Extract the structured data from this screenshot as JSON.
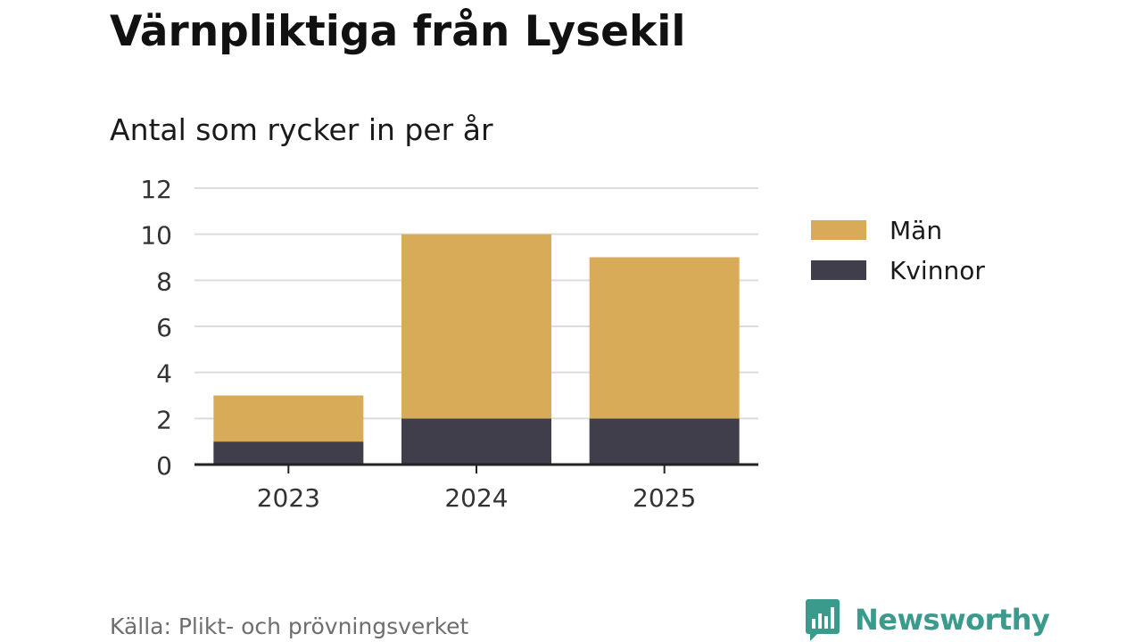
{
  "header": {
    "title": "Värnpliktiga från Lysekil",
    "subtitle": "Antal som rycker in per år"
  },
  "footer": {
    "source": "Källa: Plikt- och prövningsverket",
    "brand": "Newsworthy",
    "brand_icon": "bar-chart-speech-bubble-icon"
  },
  "colors": {
    "man": "#d8ab58",
    "kvinnor": "#403e4b",
    "grid": "#dcdcdc",
    "axis": "#222222",
    "brand": "#3a9a8c"
  },
  "chart_data": {
    "type": "bar",
    "stacked": true,
    "categories": [
      "2023",
      "2024",
      "2025"
    ],
    "series": [
      {
        "name": "Kvinnor",
        "values": [
          1,
          2,
          2
        ],
        "color": "#403e4b"
      },
      {
        "name": "Män",
        "values": [
          2,
          8,
          7
        ],
        "color": "#d8ab58"
      }
    ],
    "title": "Värnpliktiga från Lysekil",
    "subtitle": "Antal som rycker in per år",
    "xlabel": "",
    "ylabel": "",
    "ylim": [
      0,
      12
    ],
    "yticks": [
      "0",
      "2",
      "4",
      "6",
      "8",
      "10",
      "12"
    ],
    "grid": true,
    "legend": {
      "placement": "right",
      "entries": [
        "Män",
        "Kvinnor"
      ]
    }
  }
}
